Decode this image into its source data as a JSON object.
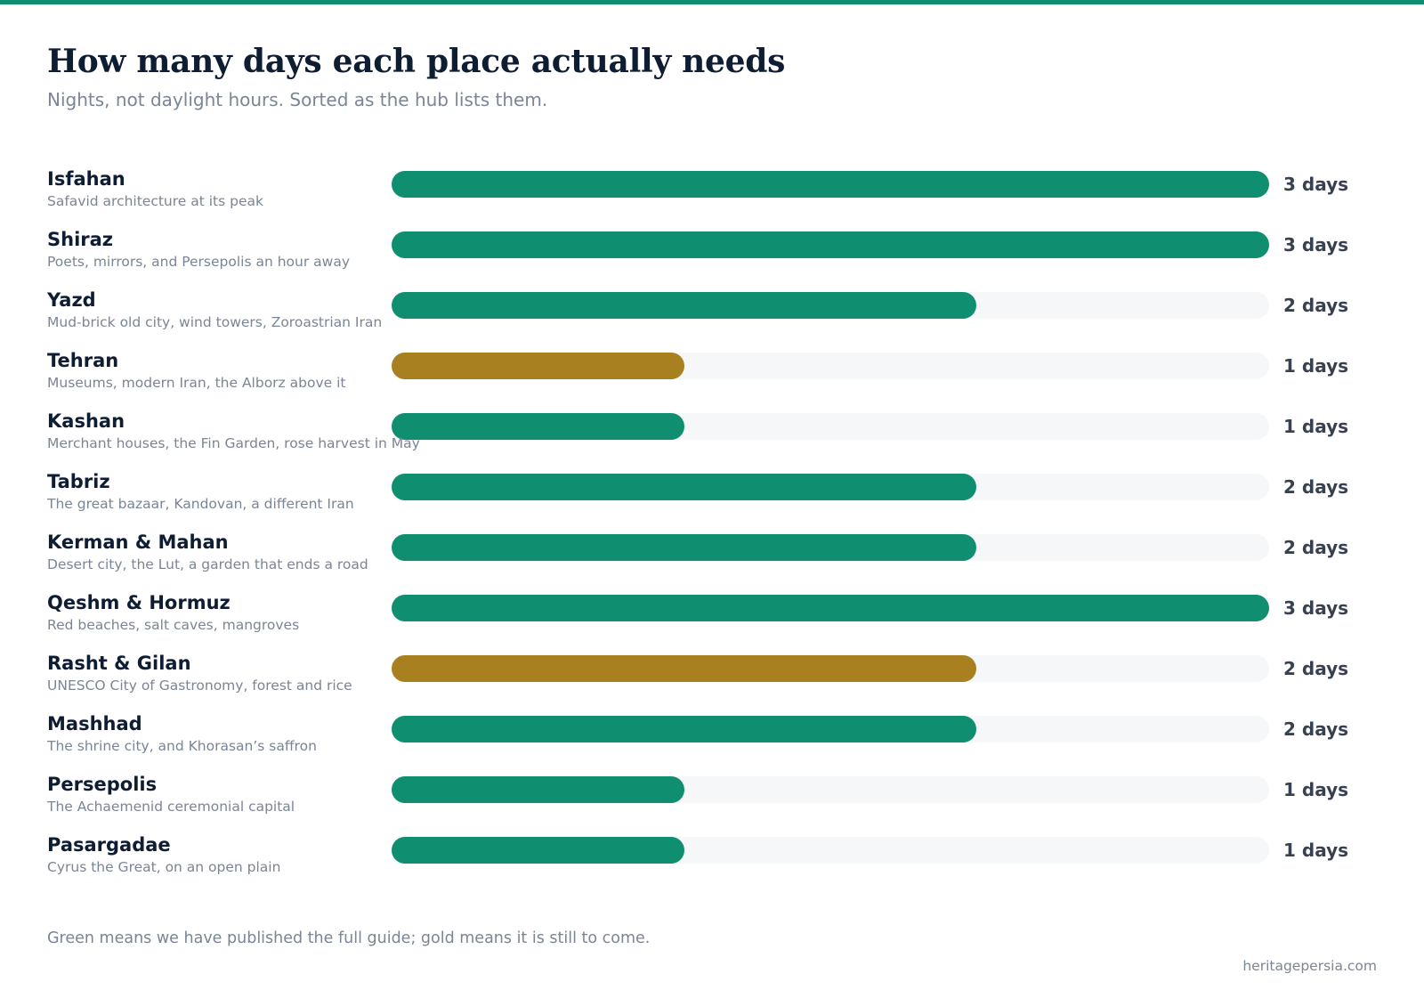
{
  "title": "How many days each place actually needs",
  "subtitle": "Nights, not daylight hours. Sorted as the hub lists them.",
  "note": "Green means we have published the full guide; gold means it is still to come.",
  "source": "heritagepersia.com",
  "colors": {
    "accent": "#0f8f70",
    "published": "#0f8f70",
    "coming": "#a88020",
    "track": "#f5f7f9",
    "title": "#0f1d33",
    "muted": "#7a8596",
    "value": "#384152"
  },
  "chart_data": {
    "type": "bar",
    "orientation": "horizontal",
    "xlim": [
      0,
      3
    ],
    "grid": false,
    "unit": "days",
    "categories": [
      "Isfahan",
      "Shiraz",
      "Yazd",
      "Tehran",
      "Kashan",
      "Tabriz",
      "Kerman & Mahan",
      "Qeshm & Hormuz",
      "Rasht & Gilan",
      "Mashhad",
      "Persepolis",
      "Pasargadae"
    ],
    "descriptions": [
      "Safavid architecture at its peak",
      "Poets, mirrors, and Persepolis an hour away",
      "Mud-brick old city, wind towers, Zoroastrian Iran",
      "Museums, modern Iran, the Alborz above it",
      "Merchant houses, the Fin Garden, rose harvest in May",
      "The great bazaar, Kandovan, a different Iran",
      "Desert city, the Lut, a garden that ends a road",
      "Red beaches, salt caves, mangroves",
      "UNESCO City of Gastronomy, forest and rice",
      "The shrine city, and Khorasan’s saffron",
      "The Achaemenid ceremonial capital",
      "Cyrus the Great, on an open plain"
    ],
    "values": [
      3,
      3,
      2,
      1,
      1,
      2,
      2,
      3,
      2,
      2,
      1,
      1
    ],
    "value_labels": [
      "3 days",
      "3 days",
      "2 days",
      "1 days",
      "1 days",
      "2 days",
      "2 days",
      "3 days",
      "2 days",
      "2 days",
      "1 days",
      "1 days"
    ],
    "status": [
      "published",
      "published",
      "published",
      "coming",
      "published",
      "published",
      "published",
      "published",
      "coming",
      "published",
      "published",
      "published"
    ]
  }
}
